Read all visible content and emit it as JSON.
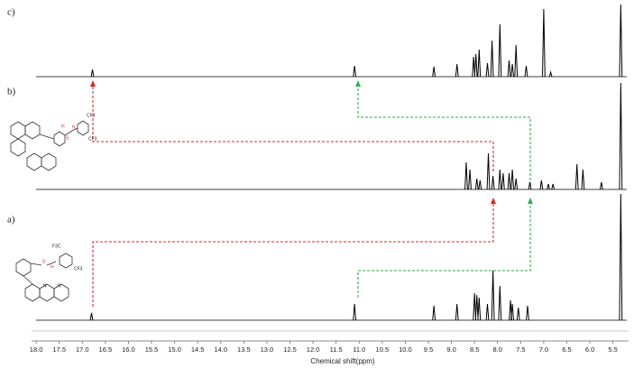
{
  "chart_data": {
    "type": "nmr",
    "x_label": "Chemical shift(ppm)",
    "xlim": [
      18.1,
      5.2
    ],
    "xticks": [
      {
        "value": 18,
        "label": "18.0"
      },
      17.5,
      {
        "value": 17,
        "label": "17.0"
      },
      16.5,
      {
        "value": 16,
        "label": "16.0"
      },
      15.5,
      {
        "value": 15,
        "label": "15.0"
      },
      14.5,
      {
        "value": 14,
        "label": "14.0"
      },
      13.5,
      {
        "value": 13,
        "label": "13.0"
      },
      12.5,
      {
        "value": 12,
        "label": "12.0"
      },
      11.5,
      {
        "value": 11,
        "label": "11.0"
      },
      10.5,
      {
        "value": 10,
        "label": "10.0"
      },
      9.5,
      {
        "value": 9,
        "label": "9.0"
      },
      8.5,
      {
        "value": 8,
        "label": "8.0"
      },
      7.5,
      {
        "value": 7,
        "label": "7.0"
      },
      6.5,
      {
        "value": 6,
        "label": "6.0"
      },
      5.5
    ],
    "series": [
      {
        "name": "c)",
        "color": "#000000",
        "ppm": [
          16.78,
          11.1,
          9.38,
          8.88,
          8.52,
          8.47,
          8.4,
          8.22,
          8.12,
          7.95,
          7.75,
          7.68,
          7.6,
          7.38,
          7.0,
          6.85,
          5.33
        ],
        "values": [
          8,
          12,
          11,
          14,
          22,
          25,
          30,
          15,
          40,
          58,
          18,
          14,
          35,
          12,
          75,
          5,
          80
        ]
      },
      {
        "name": "b)",
        "color": "#000000",
        "ppm": [
          8.68,
          8.6,
          8.45,
          8.38,
          8.2,
          8.1,
          7.95,
          7.88,
          7.75,
          7.68,
          7.6,
          7.3,
          7.05,
          6.9,
          6.8,
          6.28,
          6.15,
          5.75,
          5.33
        ],
        "values": [
          30,
          22,
          12,
          10,
          40,
          15,
          22,
          18,
          18,
          22,
          12,
          8,
          10,
          6,
          6,
          28,
          22,
          8,
          118
        ]
      },
      {
        "name": "a)",
        "color": "#000000",
        "ppm": [
          16.8,
          11.1,
          9.38,
          8.88,
          8.5,
          8.45,
          8.4,
          8.22,
          8.1,
          7.95,
          7.72,
          7.68,
          7.55,
          7.35,
          5.33
        ],
        "values": [
          8,
          18,
          16,
          18,
          30,
          28,
          25,
          18,
          55,
          38,
          22,
          18,
          14,
          16,
          140
        ]
      }
    ]
  },
  "annotations": {
    "structure_b": [
      "H",
      "N",
      "S",
      "CF3",
      "CF3"
    ],
    "structure_a": [
      "F3C",
      "CF3",
      "S",
      "H",
      "N",
      "N"
    ]
  }
}
